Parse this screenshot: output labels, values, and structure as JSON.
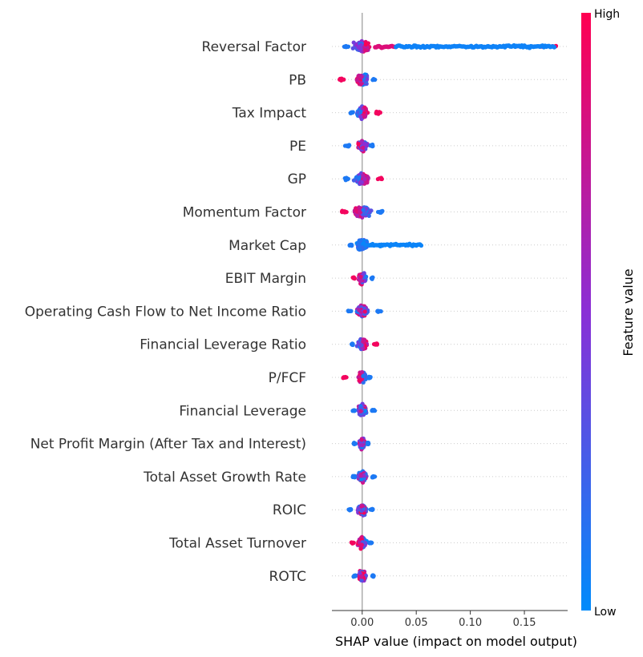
{
  "chart_data": {
    "type": "scatter",
    "subtype": "shap-beeswarm",
    "xlabel": "SHAP value (impact on model output)",
    "ylabel": "",
    "xlim": [
      -0.028,
      0.19
    ],
    "xticks": [
      0.0,
      0.05,
      0.1,
      0.15
    ],
    "xtick_labels": [
      "0.00",
      "0.05",
      "0.10",
      "0.15"
    ],
    "grid": "dotted horizontal guides",
    "colorbar": {
      "title": "Feature value",
      "high_label": "High",
      "low_label": "Low",
      "high_color": "#ff0051",
      "low_color": "#008bfb"
    },
    "features": [
      {
        "name": "Reversal Factor",
        "min": -0.017,
        "max": 0.18,
        "high_side": "right",
        "notes": "long low-value tail to 0.18; high values near 0.01-0.03"
      },
      {
        "name": "PB",
        "min": -0.021,
        "max": 0.012,
        "high_side": "left"
      },
      {
        "name": "Tax Impact",
        "min": -0.011,
        "max": 0.017,
        "high_side": "right"
      },
      {
        "name": "PE",
        "min": -0.016,
        "max": 0.01,
        "high_side": "mixed"
      },
      {
        "name": "GP",
        "min": -0.016,
        "max": 0.019,
        "high_side": "right"
      },
      {
        "name": "Momentum Factor",
        "min": -0.019,
        "max": 0.019,
        "high_side": "left"
      },
      {
        "name": "Market Cap",
        "min": -0.012,
        "max": 0.056,
        "high_side": "none",
        "notes": "low-value tail to ~0.055"
      },
      {
        "name": "EBIT Margin",
        "min": -0.009,
        "max": 0.01,
        "high_side": "left"
      },
      {
        "name": "Operating Cash Flow to Net Income Ratio",
        "min": -0.013,
        "max": 0.018,
        "high_side": "mixed"
      },
      {
        "name": "Financial Leverage Ratio",
        "min": -0.01,
        "max": 0.014,
        "high_side": "right"
      },
      {
        "name": "P/FCF",
        "min": -0.018,
        "max": 0.008,
        "high_side": "left"
      },
      {
        "name": "Financial Leverage",
        "min": -0.009,
        "max": 0.012,
        "high_side": "mixed"
      },
      {
        "name": "Net Profit Margin (After Tax and Interest)",
        "min": -0.008,
        "max": 0.006,
        "high_side": "mixed"
      },
      {
        "name": "Total Asset Growth Rate",
        "min": -0.009,
        "max": 0.012,
        "high_side": "mixed"
      },
      {
        "name": "ROIC",
        "min": -0.013,
        "max": 0.01,
        "high_side": "mixed"
      },
      {
        "name": "Total Asset Turnover",
        "min": -0.01,
        "max": 0.009,
        "high_side": "left"
      },
      {
        "name": "ROTC",
        "min": -0.008,
        "max": 0.011,
        "high_side": "mixed"
      }
    ]
  }
}
